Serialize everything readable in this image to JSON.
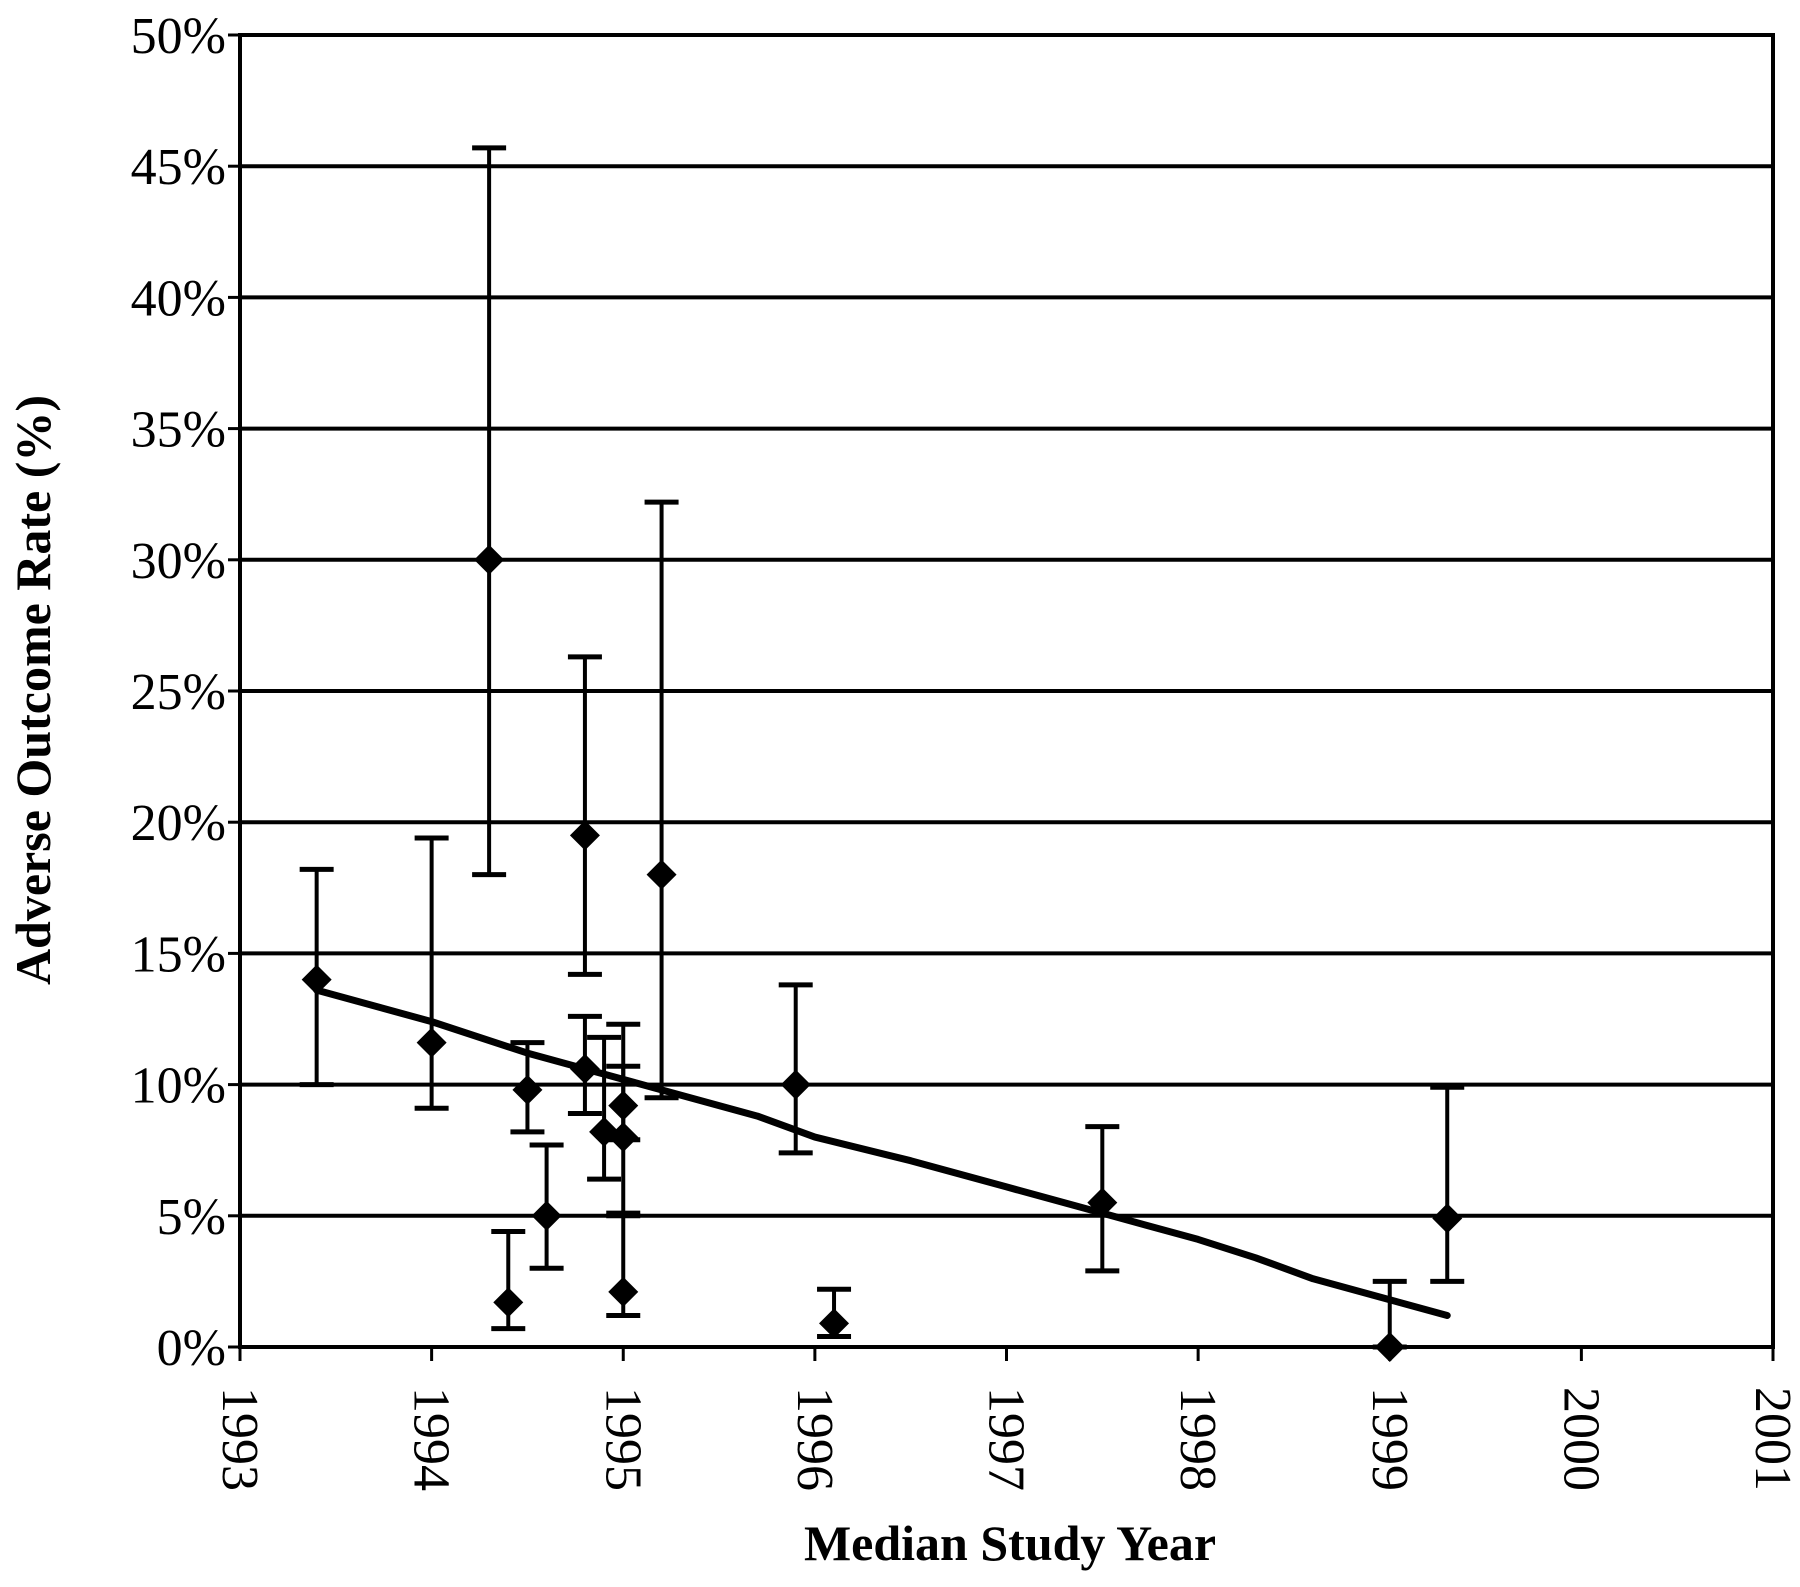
{
  "chart_data": {
    "type": "scatter",
    "title": "",
    "xlabel": "Median Study Year",
    "ylabel": "Adverse Outcome Rate (%)",
    "xlim": [
      1993,
      2001
    ],
    "ylim": [
      0,
      50
    ],
    "x_ticks": [
      "1993",
      "1994",
      "1995",
      "1996",
      "1997",
      "1998",
      "1999",
      "2000",
      "2001"
    ],
    "y_ticks": [
      "0%",
      "5%",
      "10%",
      "15%",
      "20%",
      "25%",
      "30%",
      "35%",
      "40%",
      "45%",
      "50%"
    ],
    "grid": "horizontal",
    "series": [
      {
        "marker": "diamond",
        "points": [
          {
            "x": 1993.4,
            "y": 14.0,
            "lower": 10.0,
            "upper": 18.2
          },
          {
            "x": 1994.0,
            "y": 11.6,
            "lower": 9.1,
            "upper": 19.4
          },
          {
            "x": 1994.3,
            "y": 30.0,
            "lower": 18.0,
            "upper": 45.7
          },
          {
            "x": 1994.4,
            "y": 1.7,
            "lower": 0.7,
            "upper": 4.4
          },
          {
            "x": 1994.5,
            "y": 9.8,
            "lower": 8.2,
            "upper": 11.6
          },
          {
            "x": 1994.6,
            "y": 5.0,
            "lower": 3.0,
            "upper": 7.7
          },
          {
            "x": 1994.8,
            "y": 19.5,
            "lower": 14.2,
            "upper": 26.3
          },
          {
            "x": 1994.8,
            "y": 10.6,
            "lower": 8.9,
            "upper": 12.6
          },
          {
            "x": 1994.9,
            "y": 8.2,
            "lower": 6.4,
            "upper": 11.8
          },
          {
            "x": 1995.0,
            "y": 9.2,
            "lower": 7.9,
            "upper": 12.3
          },
          {
            "x": 1995.0,
            "y": 8.0,
            "lower": 5.0,
            "upper": 10.7
          },
          {
            "x": 1995.0,
            "y": 2.1,
            "lower": 1.2,
            "upper": 5.1
          },
          {
            "x": 1995.2,
            "y": 18.0,
            "lower": 9.5,
            "upper": 32.2
          },
          {
            "x": 1995.9,
            "y": 10.0,
            "lower": 7.4,
            "upper": 13.8
          },
          {
            "x": 1996.1,
            "y": 0.9,
            "lower": 0.4,
            "upper": 2.2
          },
          {
            "x": 1997.5,
            "y": 5.5,
            "lower": 2.9,
            "upper": 8.4
          },
          {
            "x": 1999.0,
            "y": 0.0,
            "lower": 0.0,
            "upper": 2.5
          },
          {
            "x": 1999.3,
            "y": 4.9,
            "lower": 2.5,
            "upper": 9.9
          }
        ]
      }
    ],
    "trend_line": {
      "x": [
        1993.4,
        1994.0,
        1994.5,
        1995.0,
        1995.7,
        1996.0,
        1996.5,
        1997.0,
        1997.5,
        1998.0,
        1998.3,
        1998.6,
        1999.0,
        1999.3
      ],
      "y": [
        13.6,
        12.4,
        11.2,
        10.2,
        8.8,
        8.0,
        7.1,
        6.1,
        5.1,
        4.1,
        3.4,
        2.6,
        1.8,
        1.2
      ]
    }
  }
}
